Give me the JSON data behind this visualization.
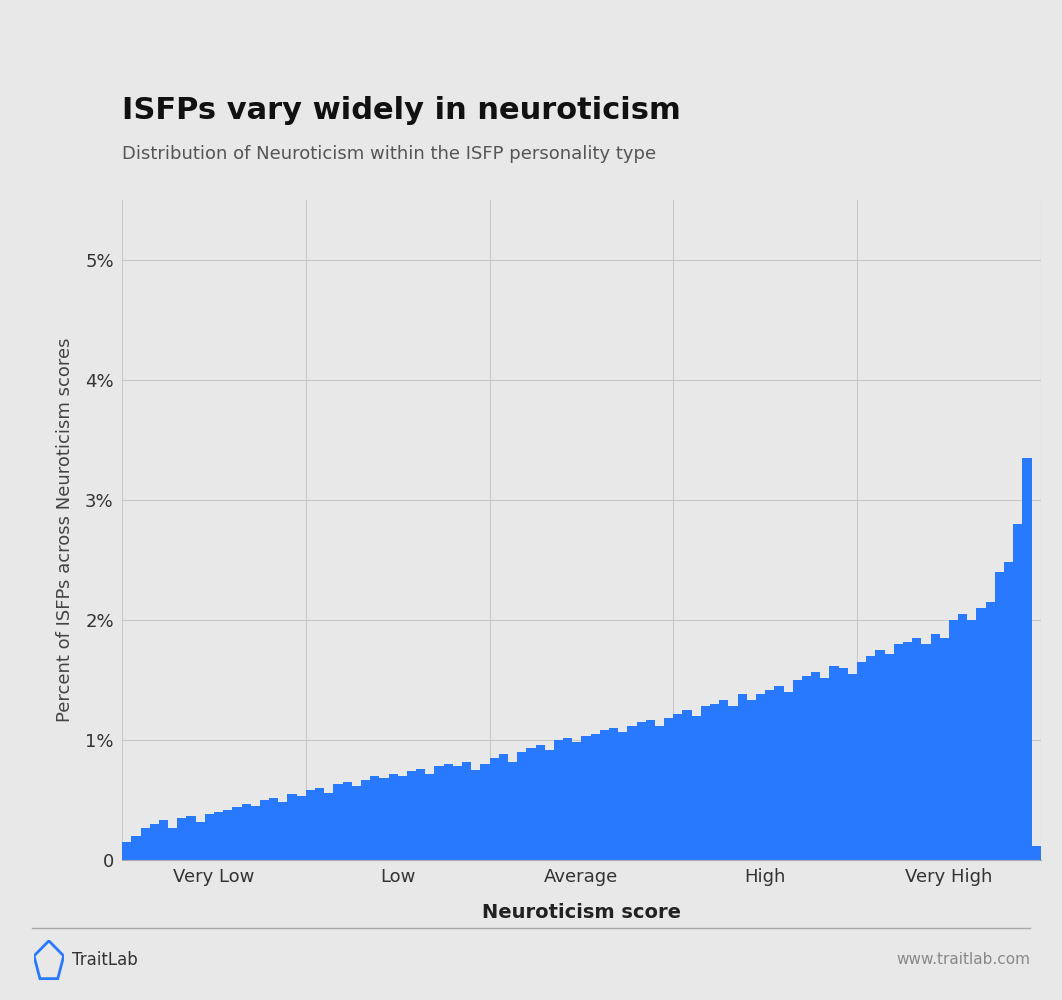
{
  "title": "ISFPs vary widely in neuroticism",
  "subtitle": "Distribution of Neuroticism within the ISFP personality type",
  "xlabel": "Neuroticism score",
  "ylabel": "Percent of ISFPs across Neuroticism scores",
  "bar_color": "#2979ff",
  "background_color": "#e8e8e8",
  "figure_background": "#e8e8e8",
  "xtick_labels": [
    "Very Low",
    "Low",
    "Average",
    "High",
    "Very High"
  ],
  "ytick_labels": [
    "0",
    "1%",
    "2%",
    "3%",
    "4%",
    "5%"
  ],
  "ytick_values": [
    0,
    1,
    2,
    3,
    4,
    5
  ],
  "ylim": [
    0,
    5.5
  ],
  "n_sections": 5,
  "bars_per_section": 20,
  "values": [
    0.15,
    0.2,
    0.27,
    0.3,
    0.33,
    0.27,
    0.35,
    0.37,
    0.32,
    0.38,
    0.4,
    0.42,
    0.44,
    0.47,
    0.45,
    0.5,
    0.52,
    0.48,
    0.55,
    0.53,
    0.58,
    0.6,
    0.56,
    0.63,
    0.65,
    0.62,
    0.67,
    0.7,
    0.68,
    0.72,
    0.7,
    0.74,
    0.76,
    0.72,
    0.78,
    0.8,
    0.78,
    0.82,
    0.75,
    0.8,
    0.85,
    0.88,
    0.82,
    0.9,
    0.93,
    0.96,
    0.92,
    1.0,
    1.02,
    0.98,
    1.03,
    1.05,
    1.08,
    1.1,
    1.07,
    1.12,
    1.15,
    1.17,
    1.12,
    1.18,
    1.22,
    1.25,
    1.2,
    1.28,
    1.3,
    1.33,
    1.28,
    1.38,
    1.33,
    1.38,
    1.42,
    1.45,
    1.4,
    1.5,
    1.53,
    1.57,
    1.52,
    1.62,
    1.6,
    1.55,
    1.65,
    1.7,
    1.75,
    1.72,
    1.8,
    1.82,
    1.85,
    1.8,
    1.88,
    1.85,
    2.0,
    2.05,
    2.0,
    2.1,
    2.15,
    2.4,
    2.48,
    2.8,
    3.35,
    0.12
  ],
  "footer_left": "TraitLab",
  "footer_right": "www.traitlab.com",
  "grid_color": "#c8c8c8",
  "title_fontsize": 22,
  "subtitle_fontsize": 13,
  "ylabel_fontsize": 13,
  "xlabel_fontsize": 14,
  "tick_fontsize": 13
}
